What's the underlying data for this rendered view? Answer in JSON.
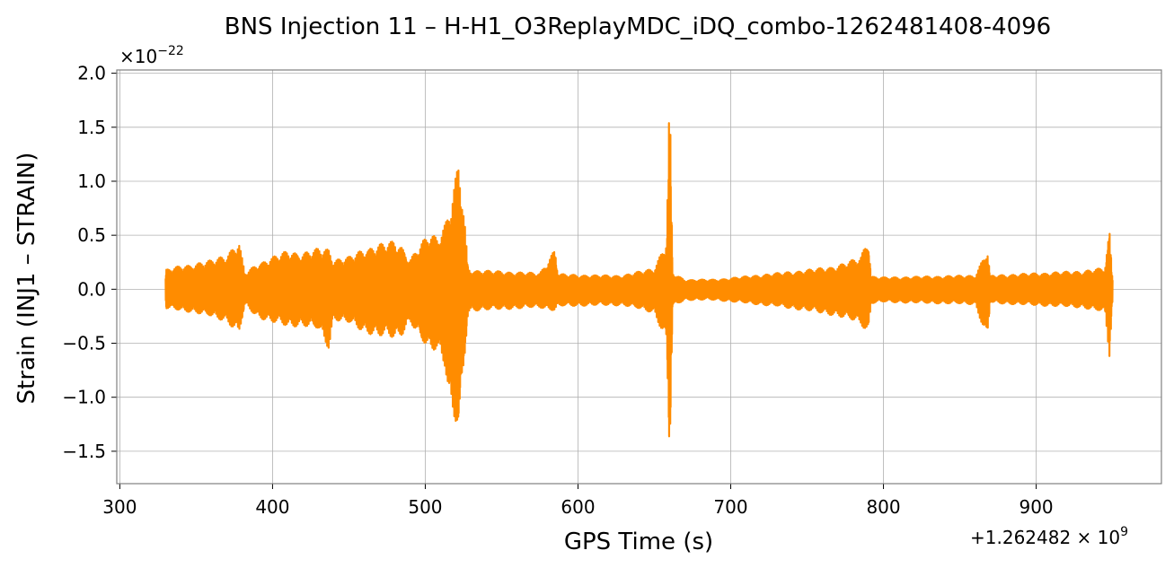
{
  "chart_data": {
    "type": "line",
    "title": "BNS Injection 11 – H-H1_O3ReplayMDC_iDQ_combo-1262481408-4096",
    "xlabel": "GPS Time (s)",
    "ylabel": "Strain (INJ1 – STRAIN)",
    "x_offset_label": "+1.262482 × 10^9",
    "y_scale_label": "×10^−22",
    "xlim": [
      298,
      982
    ],
    "ylim": [
      -1.8,
      2.03
    ],
    "x_ticks": [
      300,
      400,
      500,
      600,
      700,
      800,
      900
    ],
    "x_tick_labels": [
      "300",
      "400",
      "500",
      "600",
      "700",
      "800",
      "900"
    ],
    "y_ticks": [
      -1.5,
      -1.0,
      -0.5,
      0.0,
      0.5,
      1.0,
      1.5,
      2.0
    ],
    "y_tick_labels": [
      "−1.5",
      "−1.0",
      "−0.5",
      "0.0",
      "0.5",
      "1.0",
      "1.5",
      "2.0"
    ],
    "grid": true,
    "color": "#ff8c00",
    "series": [
      {
        "x_range": [
          330,
          950
        ],
        "envelope": {
          "x": [
            330,
            340,
            350,
            360,
            370,
            378,
            382,
            390,
            400,
            410,
            420,
            430,
            437,
            440,
            450,
            460,
            470,
            480,
            485,
            490,
            498,
            503,
            508,
            513,
            517,
            522,
            526,
            528,
            530,
            545,
            560,
            575,
            585,
            587,
            590,
            610,
            630,
            650,
            658,
            660,
            662,
            670,
            690,
            710,
            730,
            750,
            770,
            785,
            790,
            792,
            800,
            830,
            860,
            868,
            870,
            872,
            900,
            930,
            945,
            948,
            950
          ],
          "upper": [
            0.18,
            0.22,
            0.24,
            0.27,
            0.33,
            0.44,
            0.15,
            0.24,
            0.3,
            0.36,
            0.34,
            0.38,
            0.38,
            0.28,
            0.3,
            0.38,
            0.42,
            0.45,
            0.4,
            0.28,
            0.44,
            0.52,
            0.5,
            0.62,
            0.8,
            1.2,
            0.6,
            0.2,
            0.18,
            0.17,
            0.16,
            0.15,
            0.38,
            0.14,
            0.14,
            0.13,
            0.13,
            0.2,
            0.45,
            1.87,
            0.15,
            0.09,
            0.09,
            0.12,
            0.15,
            0.18,
            0.22,
            0.3,
            0.5,
            0.12,
            0.11,
            0.12,
            0.13,
            0.37,
            0.12,
            0.13,
            0.15,
            0.17,
            0.2,
            0.55,
            0.1
          ],
          "lower": [
            -0.18,
            -0.2,
            -0.22,
            -0.26,
            -0.3,
            -0.42,
            -0.15,
            -0.26,
            -0.31,
            -0.35,
            -0.34,
            -0.38,
            -0.56,
            -0.28,
            -0.32,
            -0.4,
            -0.44,
            -0.46,
            -0.42,
            -0.3,
            -0.5,
            -0.58,
            -0.55,
            -0.72,
            -1.2,
            -1.35,
            -0.6,
            -0.22,
            -0.2,
            -0.19,
            -0.18,
            -0.17,
            -0.2,
            -0.16,
            -0.16,
            -0.15,
            -0.15,
            -0.22,
            -0.5,
            -1.63,
            -0.16,
            -0.1,
            -0.1,
            -0.13,
            -0.16,
            -0.2,
            -0.25,
            -0.32,
            -0.42,
            -0.13,
            -0.12,
            -0.13,
            -0.14,
            -0.47,
            -0.12,
            -0.13,
            -0.15,
            -0.17,
            -0.22,
            -0.63,
            -0.1
          ]
        }
      }
    ]
  }
}
